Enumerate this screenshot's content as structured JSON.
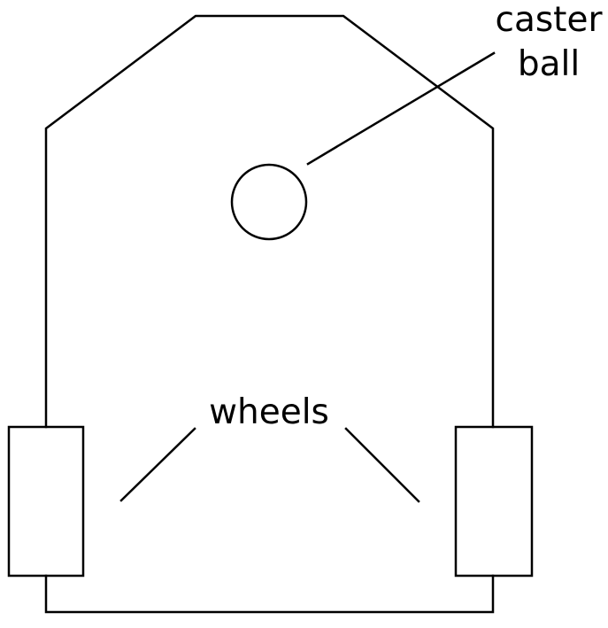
{
  "labels": {
    "caster_line1": "caster",
    "caster_line2": "ball",
    "wheels": "wheels"
  },
  "colors": {
    "stroke": "#000000",
    "background": "#ffffff"
  }
}
